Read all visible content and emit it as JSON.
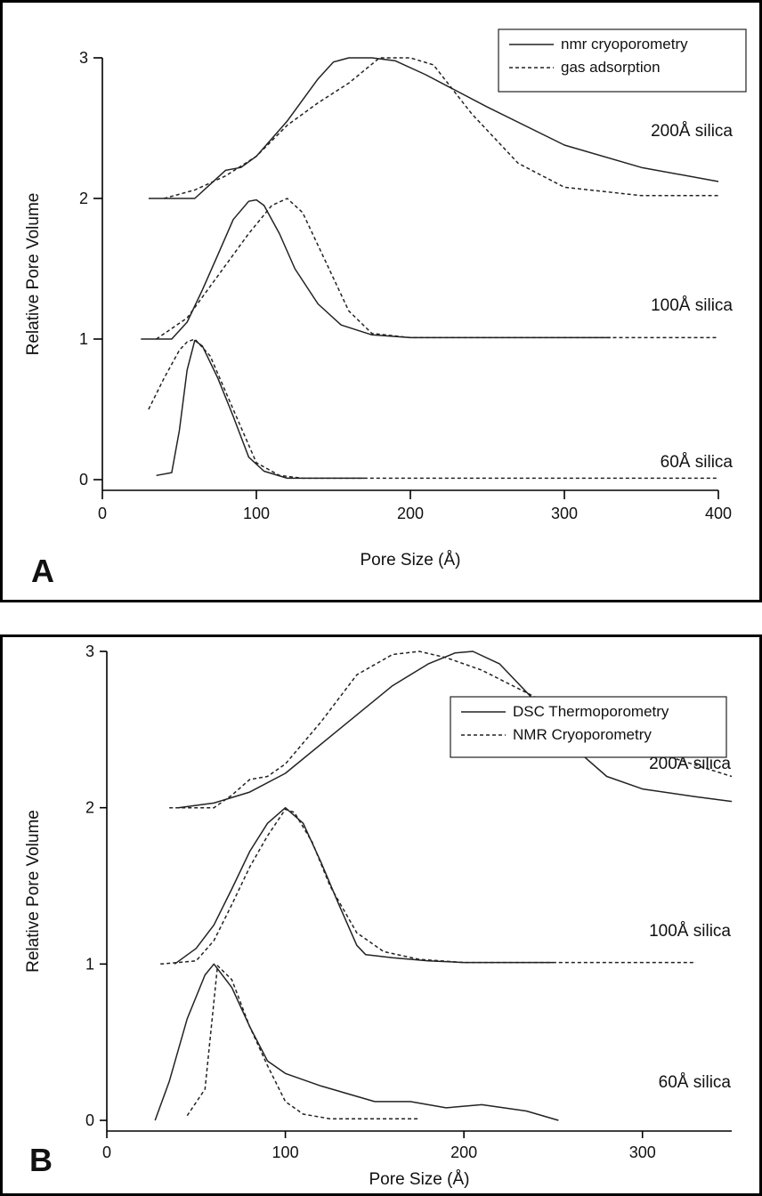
{
  "chart_data": [
    {
      "type": "line",
      "panel_label": "A",
      "xlabel": "Pore Size (Å)",
      "ylabel": "Relative Pore Volume",
      "xlim": [
        0,
        400
      ],
      "ylim": [
        -0.05,
        3.2
      ],
      "x_ticks": [
        0,
        100,
        200,
        300,
        400
      ],
      "y_ticks": [
        0,
        1,
        2,
        3
      ],
      "grid": false,
      "legend_position": "top-right",
      "legend": [
        {
          "name": "nmr cryoporometry",
          "style": "solid"
        },
        {
          "name": "gas adsorption",
          "style": "dashed"
        }
      ],
      "annotations": [
        {
          "text": "200Å silica",
          "y": 2.45
        },
        {
          "text": "100Å silica",
          "y": 1.25
        },
        {
          "text": "60Å silica",
          "y": 0.17
        }
      ],
      "series": [
        {
          "name": "nmr cryoporometry",
          "group": "200Å silica",
          "style": "solid",
          "points": [
            [
              30,
              2.0
            ],
            [
              60,
              2.0
            ],
            [
              70,
              2.1
            ],
            [
              80,
              2.2
            ],
            [
              90,
              2.22
            ],
            [
              100,
              2.3
            ],
            [
              120,
              2.55
            ],
            [
              140,
              2.85
            ],
            [
              150,
              2.97
            ],
            [
              160,
              3.0
            ],
            [
              175,
              3.0
            ],
            [
              190,
              2.98
            ],
            [
              210,
              2.88
            ],
            [
              250,
              2.65
            ],
            [
              300,
              2.38
            ],
            [
              350,
              2.22
            ],
            [
              400,
              2.12
            ]
          ]
        },
        {
          "name": "gas adsorption",
          "group": "200Å silica",
          "style": "dashed",
          "points": [
            [
              40,
              2.0
            ],
            [
              60,
              2.06
            ],
            [
              80,
              2.16
            ],
            [
              100,
              2.3
            ],
            [
              120,
              2.52
            ],
            [
              140,
              2.68
            ],
            [
              160,
              2.82
            ],
            [
              180,
              3.0
            ],
            [
              200,
              3.0
            ],
            [
              215,
              2.95
            ],
            [
              240,
              2.6
            ],
            [
              270,
              2.25
            ],
            [
              300,
              2.08
            ],
            [
              350,
              2.02
            ],
            [
              400,
              2.02
            ]
          ]
        },
        {
          "name": "nmr cryoporometry",
          "group": "100Å silica",
          "style": "solid",
          "points": [
            [
              25,
              1.0
            ],
            [
              45,
              1.0
            ],
            [
              55,
              1.12
            ],
            [
              65,
              1.35
            ],
            [
              75,
              1.6
            ],
            [
              85,
              1.85
            ],
            [
              95,
              1.98
            ],
            [
              100,
              1.99
            ],
            [
              105,
              1.95
            ],
            [
              115,
              1.75
            ],
            [
              125,
              1.5
            ],
            [
              140,
              1.25
            ],
            [
              155,
              1.1
            ],
            [
              175,
              1.03
            ],
            [
              200,
              1.01
            ],
            [
              330,
              1.01
            ]
          ]
        },
        {
          "name": "gas adsorption",
          "group": "100Å silica",
          "style": "dashed",
          "points": [
            [
              35,
              1.0
            ],
            [
              55,
              1.15
            ],
            [
              75,
              1.45
            ],
            [
              95,
              1.75
            ],
            [
              110,
              1.95
            ],
            [
              120,
              2.0
            ],
            [
              130,
              1.9
            ],
            [
              145,
              1.55
            ],
            [
              160,
              1.2
            ],
            [
              175,
              1.04
            ],
            [
              200,
              1.01
            ],
            [
              400,
              1.01
            ]
          ]
        },
        {
          "name": "nmr cryoporometry",
          "group": "60Å silica",
          "style": "solid",
          "points": [
            [
              35,
              0.03
            ],
            [
              45,
              0.05
            ],
            [
              50,
              0.35
            ],
            [
              55,
              0.78
            ],
            [
              60,
              0.99
            ],
            [
              65,
              0.95
            ],
            [
              75,
              0.72
            ],
            [
              85,
              0.45
            ],
            [
              95,
              0.16
            ],
            [
              105,
              0.06
            ],
            [
              120,
              0.01
            ],
            [
              170,
              0.01
            ]
          ]
        },
        {
          "name": "gas adsorption",
          "group": "60Å silica",
          "style": "dashed",
          "points": [
            [
              30,
              0.5
            ],
            [
              40,
              0.72
            ],
            [
              50,
              0.92
            ],
            [
              55,
              0.98
            ],
            [
              60,
              1.0
            ],
            [
              70,
              0.88
            ],
            [
              85,
              0.5
            ],
            [
              100,
              0.12
            ],
            [
              115,
              0.03
            ],
            [
              130,
              0.01
            ],
            [
              200,
              0.01
            ],
            [
              400,
              0.01
            ]
          ]
        }
      ]
    },
    {
      "type": "line",
      "panel_label": "B",
      "xlabel": "Pore Size (Å)",
      "ylabel": "Relative Pore Volume",
      "xlim": [
        0,
        350
      ],
      "ylim": [
        -0.05,
        3.2
      ],
      "x_ticks": [
        0,
        100,
        200,
        300
      ],
      "y_ticks": [
        0,
        1,
        2,
        3
      ],
      "grid": false,
      "legend_position": "lower-right",
      "legend": [
        {
          "name": "DSC Thermoporometry",
          "style": "solid"
        },
        {
          "name": "NMR Cryoporometry",
          "style": "dashed"
        }
      ],
      "annotations": [
        {
          "text": "200Å silica",
          "y": 2.45
        },
        {
          "text": "100Å silica",
          "y": 1.25
        },
        {
          "text": "60Å silica",
          "y": 0.17
        }
      ],
      "series": [
        {
          "name": "DSC Thermoporometry",
          "group": "200Å silica",
          "style": "solid",
          "points": [
            [
              40,
              2.0
            ],
            [
              60,
              2.03
            ],
            [
              80,
              2.1
            ],
            [
              100,
              2.22
            ],
            [
              130,
              2.5
            ],
            [
              160,
              2.78
            ],
            [
              180,
              2.92
            ],
            [
              195,
              2.99
            ],
            [
              205,
              3.0
            ],
            [
              220,
              2.92
            ],
            [
              240,
              2.68
            ],
            [
              260,
              2.4
            ],
            [
              280,
              2.2
            ],
            [
              300,
              2.12
            ],
            [
              330,
              2.07
            ],
            [
              350,
              2.04
            ]
          ]
        },
        {
          "name": "NMR Cryoporometry",
          "group": "200Å silica",
          "style": "dashed",
          "points": [
            [
              35,
              2.0
            ],
            [
              60,
              2.0
            ],
            [
              70,
              2.08
            ],
            [
              80,
              2.18
            ],
            [
              90,
              2.2
            ],
            [
              100,
              2.28
            ],
            [
              120,
              2.55
            ],
            [
              140,
              2.85
            ],
            [
              160,
              2.98
            ],
            [
              175,
              3.0
            ],
            [
              190,
              2.96
            ],
            [
              210,
              2.88
            ],
            [
              250,
              2.65
            ],
            [
              300,
              2.38
            ],
            [
              350,
              2.2
            ]
          ]
        },
        {
          "name": "DSC Thermoporometry",
          "group": "100Å silica",
          "style": "solid",
          "points": [
            [
              38,
              1.0
            ],
            [
              50,
              1.1
            ],
            [
              60,
              1.25
            ],
            [
              70,
              1.48
            ],
            [
              80,
              1.72
            ],
            [
              90,
              1.9
            ],
            [
              100,
              2.0
            ],
            [
              110,
              1.9
            ],
            [
              120,
              1.65
            ],
            [
              130,
              1.38
            ],
            [
              140,
              1.12
            ],
            [
              145,
              1.06
            ],
            [
              160,
              1.04
            ],
            [
              180,
              1.02
            ],
            [
              200,
              1.01
            ],
            [
              250,
              1.01
            ]
          ]
        },
        {
          "name": "NMR Cryoporometry",
          "group": "100Å silica",
          "style": "dashed",
          "points": [
            [
              30,
              1.0
            ],
            [
              50,
              1.02
            ],
            [
              60,
              1.15
            ],
            [
              70,
              1.38
            ],
            [
              80,
              1.62
            ],
            [
              90,
              1.82
            ],
            [
              100,
              1.99
            ],
            [
              105,
              1.97
            ],
            [
              115,
              1.78
            ],
            [
              125,
              1.5
            ],
            [
              140,
              1.2
            ],
            [
              155,
              1.08
            ],
            [
              175,
              1.03
            ],
            [
              200,
              1.01
            ],
            [
              330,
              1.01
            ]
          ]
        },
        {
          "name": "DSC Thermoporometry",
          "group": "60Å silica",
          "style": "solid",
          "points": [
            [
              27,
              0.0
            ],
            [
              35,
              0.25
            ],
            [
              45,
              0.65
            ],
            [
              55,
              0.93
            ],
            [
              60,
              1.0
            ],
            [
              70,
              0.85
            ],
            [
              80,
              0.6
            ],
            [
              90,
              0.38
            ],
            [
              100,
              0.3
            ],
            [
              120,
              0.22
            ],
            [
              150,
              0.12
            ],
            [
              170,
              0.12
            ],
            [
              190,
              0.08
            ],
            [
              210,
              0.1
            ],
            [
              235,
              0.06
            ],
            [
              253,
              0.0
            ]
          ]
        },
        {
          "name": "NMR Cryoporometry",
          "group": "60Å silica",
          "style": "dashed",
          "points": [
            [
              45,
              0.03
            ],
            [
              55,
              0.2
            ],
            [
              62,
              0.99
            ],
            [
              70,
              0.9
            ],
            [
              80,
              0.6
            ],
            [
              90,
              0.35
            ],
            [
              100,
              0.12
            ],
            [
              110,
              0.04
            ],
            [
              125,
              0.01
            ],
            [
              175,
              0.01
            ]
          ]
        }
      ]
    }
  ]
}
